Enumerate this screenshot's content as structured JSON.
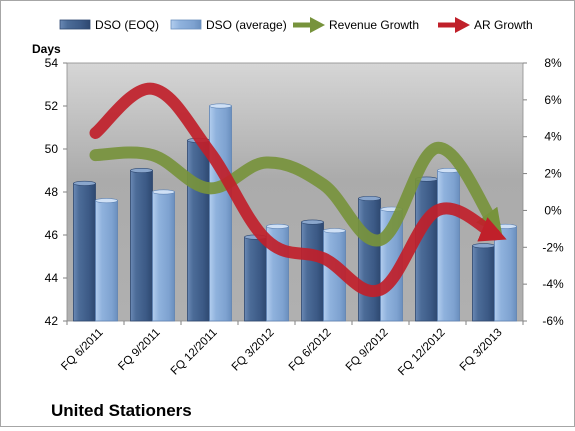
{
  "chart_data": {
    "type": "bar",
    "categories": [
      "FQ 6/2011",
      "FQ 9/2011",
      "FQ 12/2011",
      "FQ 3/2012",
      "FQ 6/2012",
      "FQ 9/2012",
      "FQ 12/2012",
      "FQ 3/2013"
    ],
    "series": [
      {
        "name": "DSO (EOQ)",
        "type": "bar",
        "axis": "left",
        "color": "#4a6a96",
        "values": [
          48.4,
          49.0,
          50.4,
          45.9,
          46.6,
          47.7,
          48.6,
          45.5
        ]
      },
      {
        "name": "DSO (average)",
        "type": "bar",
        "axis": "left",
        "color": "#8fb2dd",
        "values": [
          47.6,
          48.0,
          52.0,
          46.4,
          46.2,
          47.2,
          49.0,
          46.4
        ]
      },
      {
        "name": "Revenue Growth",
        "type": "line",
        "axis": "right",
        "color": "#77933c",
        "values": [
          3.0,
          3.0,
          1.2,
          2.6,
          1.4,
          -1.6,
          3.4,
          -0.8
        ]
      },
      {
        "name": "AR Growth",
        "type": "line",
        "axis": "right",
        "color": "#c0202a",
        "values": [
          4.2,
          6.6,
          3.2,
          -1.6,
          -2.6,
          -4.3,
          0.0,
          -1.3
        ]
      }
    ],
    "ylabel": "Days",
    "ylim": [
      42,
      54
    ],
    "yticks": [
      "42",
      "44",
      "46",
      "48",
      "50",
      "52",
      "54"
    ],
    "y2lim": [
      -6,
      8
    ],
    "y2ticks": [
      "-6%",
      "-4%",
      "-2%",
      "0%",
      "2%",
      "4%",
      "6%",
      "8%"
    ],
    "legend_position": "top",
    "grid": false,
    "footer_label": "United Stationers"
  }
}
